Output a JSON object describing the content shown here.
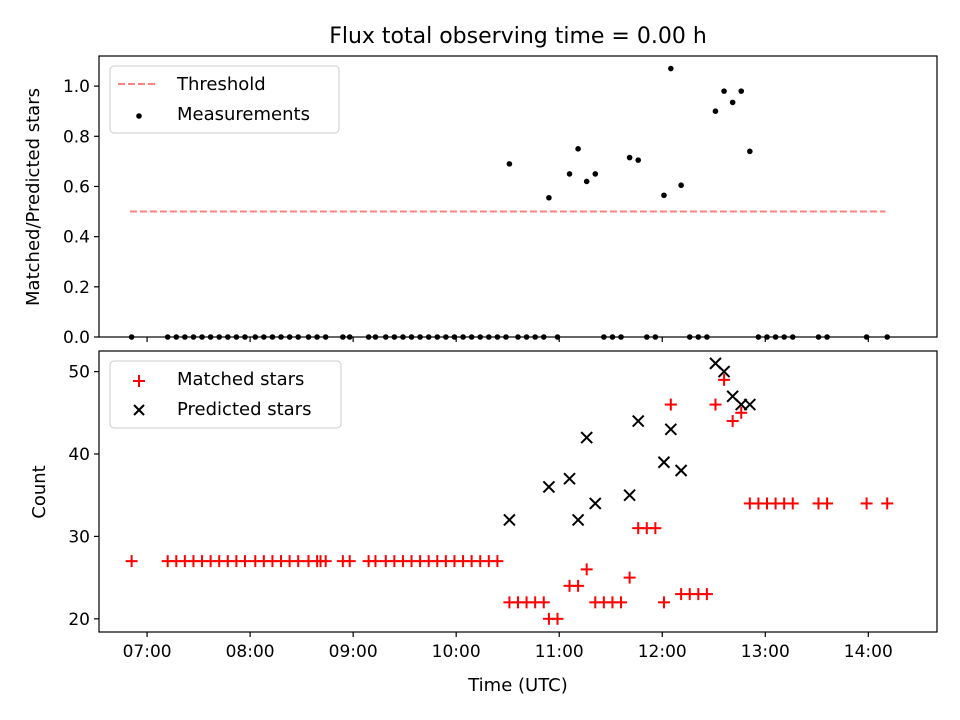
{
  "figure_title": "Flux total observing time = 0.00 h",
  "chart_data": [
    {
      "type": "scatter",
      "panel": "top",
      "ylabel": "Matched/Predicted stars",
      "xlabel": "",
      "ylim": [
        0,
        1.12
      ],
      "xlim": [
        "06:32",
        "14:40"
      ],
      "yticks": [
        0.0,
        0.2,
        0.4,
        0.6,
        0.8,
        1.0
      ],
      "ytick_labels": [
        "0.0",
        "0.2",
        "0.4",
        "0.6",
        "0.8",
        "1.0"
      ],
      "legend": {
        "placement": "upper left",
        "entries": [
          "Threshold",
          "Measurements"
        ]
      },
      "threshold": {
        "name": "Threshold",
        "y": 0.5,
        "x_start": "06:50",
        "x_end": "14:10",
        "color": "#ff8080",
        "style": "dashed"
      },
      "series": [
        {
          "name": "Measurements",
          "color": "#000000",
          "marker": "dot",
          "points": [
            [
              "06:51",
              0
            ],
            [
              "07:12",
              0
            ],
            [
              "07:17",
              0
            ],
            [
              "07:22",
              0
            ],
            [
              "07:27",
              0
            ],
            [
              "07:32",
              0
            ],
            [
              "07:37",
              0
            ],
            [
              "07:42",
              0
            ],
            [
              "07:47",
              0
            ],
            [
              "07:52",
              0
            ],
            [
              "07:57",
              0
            ],
            [
              "08:03",
              0
            ],
            [
              "08:08",
              0
            ],
            [
              "08:13",
              0
            ],
            [
              "08:18",
              0
            ],
            [
              "08:23",
              0
            ],
            [
              "08:28",
              0
            ],
            [
              "08:34",
              0
            ],
            [
              "08:39",
              0
            ],
            [
              "08:44",
              0
            ],
            [
              "08:54",
              0
            ],
            [
              "08:58",
              0
            ],
            [
              "09:09",
              0
            ],
            [
              "09:13",
              0
            ],
            [
              "09:19",
              0
            ],
            [
              "09:24",
              0
            ],
            [
              "09:29",
              0
            ],
            [
              "09:34",
              0
            ],
            [
              "09:39",
              0
            ],
            [
              "09:44",
              0
            ],
            [
              "09:49",
              0
            ],
            [
              "09:54",
              0
            ],
            [
              "09:59",
              0
            ],
            [
              "10:04",
              0
            ],
            [
              "10:09",
              0
            ],
            [
              "10:14",
              0
            ],
            [
              "10:19",
              0
            ],
            [
              "10:24",
              0
            ],
            [
              "10:29",
              0
            ],
            [
              "10:31",
              0.69
            ],
            [
              "10:36",
              0
            ],
            [
              "10:41",
              0
            ],
            [
              "10:46",
              0
            ],
            [
              "10:51",
              0
            ],
            [
              "10:54",
              0.555
            ],
            [
              "10:59",
              0
            ],
            [
              "11:06",
              0.65
            ],
            [
              "11:11",
              0.75
            ],
            [
              "11:16",
              0.62
            ],
            [
              "11:21",
              0.65
            ],
            [
              "11:26",
              0
            ],
            [
              "11:31",
              0
            ],
            [
              "11:36",
              0
            ],
            [
              "11:41",
              0.715
            ],
            [
              "11:46",
              0.705
            ],
            [
              "11:51",
              0
            ],
            [
              "11:56",
              0
            ],
            [
              "12:01",
              0.565
            ],
            [
              "12:05",
              1.07
            ],
            [
              "12:11",
              0.605
            ],
            [
              "12:16",
              0
            ],
            [
              "12:21",
              0
            ],
            [
              "12:26",
              0
            ],
            [
              "12:31",
              0.9
            ],
            [
              "12:36",
              0.98
            ],
            [
              "12:41",
              0.935
            ],
            [
              "12:46",
              0.98
            ],
            [
              "12:51",
              0.74
            ],
            [
              "12:56",
              0
            ],
            [
              "13:01",
              0
            ],
            [
              "13:06",
              0
            ],
            [
              "13:11",
              0
            ],
            [
              "13:16",
              0
            ],
            [
              "13:31",
              0
            ],
            [
              "13:36",
              0
            ],
            [
              "13:59",
              0
            ],
            [
              "14:11",
              0
            ]
          ]
        }
      ]
    },
    {
      "type": "scatter",
      "panel": "bottom",
      "ylabel": "Count",
      "xlabel": "Time (UTC)",
      "ylim": [
        18.4,
        52.5
      ],
      "xlim": [
        "06:32",
        "14:40"
      ],
      "yticks": [
        20,
        30,
        40,
        50
      ],
      "ytick_labels": [
        "20",
        "30",
        "40",
        "50"
      ],
      "xticks": [
        "07:00",
        "08:00",
        "09:00",
        "10:00",
        "11:00",
        "12:00",
        "13:00",
        "14:00"
      ],
      "xtick_labels": [
        "07:00",
        "08:00",
        "09:00",
        "10:00",
        "11:00",
        "12:00",
        "13:00",
        "14:00"
      ],
      "legend": {
        "placement": "upper left",
        "entries": [
          "Matched stars",
          "Predicted stars"
        ]
      },
      "series": [
        {
          "name": "Matched stars",
          "color": "#ff0000",
          "marker": "plus",
          "points": [
            [
              "06:51",
              27
            ],
            [
              "07:12",
              27
            ],
            [
              "07:17",
              27
            ],
            [
              "07:22",
              27
            ],
            [
              "07:27",
              27
            ],
            [
              "07:32",
              27
            ],
            [
              "07:37",
              27
            ],
            [
              "07:42",
              27
            ],
            [
              "07:47",
              27
            ],
            [
              "07:52",
              27
            ],
            [
              "07:57",
              27
            ],
            [
              "08:03",
              27
            ],
            [
              "08:08",
              27
            ],
            [
              "08:13",
              27
            ],
            [
              "08:18",
              27
            ],
            [
              "08:23",
              27
            ],
            [
              "08:28",
              27
            ],
            [
              "08:34",
              27
            ],
            [
              "08:39",
              27
            ],
            [
              "08:41",
              27
            ],
            [
              "08:44",
              27
            ],
            [
              "08:54",
              27
            ],
            [
              "08:58",
              27
            ],
            [
              "09:09",
              27
            ],
            [
              "09:13",
              27
            ],
            [
              "09:19",
              27
            ],
            [
              "09:24",
              27
            ],
            [
              "09:29",
              27
            ],
            [
              "09:34",
              27
            ],
            [
              "09:39",
              27
            ],
            [
              "09:44",
              27
            ],
            [
              "09:49",
              27
            ],
            [
              "09:54",
              27
            ],
            [
              "09:59",
              27
            ],
            [
              "10:04",
              27
            ],
            [
              "10:09",
              27
            ],
            [
              "10:14",
              27
            ],
            [
              "10:19",
              27
            ],
            [
              "10:24",
              27
            ],
            [
              "10:31",
              22
            ],
            [
              "10:36",
              22
            ],
            [
              "10:41",
              22
            ],
            [
              "10:46",
              22
            ],
            [
              "10:51",
              22
            ],
            [
              "10:54",
              20
            ],
            [
              "10:59",
              20
            ],
            [
              "11:06",
              24
            ],
            [
              "11:11",
              24
            ],
            [
              "11:16",
              26
            ],
            [
              "11:21",
              22
            ],
            [
              "11:26",
              22
            ],
            [
              "11:31",
              22
            ],
            [
              "11:36",
              22
            ],
            [
              "11:41",
              25
            ],
            [
              "11:46",
              31
            ],
            [
              "11:51",
              31
            ],
            [
              "11:56",
              31
            ],
            [
              "12:01",
              22
            ],
            [
              "12:05",
              46
            ],
            [
              "12:11",
              23
            ],
            [
              "12:16",
              23
            ],
            [
              "12:21",
              23
            ],
            [
              "12:26",
              23
            ],
            [
              "12:31",
              46
            ],
            [
              "12:36",
              49
            ],
            [
              "12:41",
              44
            ],
            [
              "12:46",
              45
            ],
            [
              "12:51",
              34
            ],
            [
              "12:56",
              34
            ],
            [
              "13:01",
              34
            ],
            [
              "13:06",
              34
            ],
            [
              "13:11",
              34
            ],
            [
              "13:16",
              34
            ],
            [
              "13:31",
              34
            ],
            [
              "13:36",
              34
            ],
            [
              "13:59",
              34
            ],
            [
              "14:11",
              34
            ]
          ]
        },
        {
          "name": "Predicted stars",
          "color": "#000000",
          "marker": "x",
          "points": [
            [
              "10:31",
              32
            ],
            [
              "10:54",
              36
            ],
            [
              "11:06",
              37
            ],
            [
              "11:11",
              32
            ],
            [
              "11:16",
              42
            ],
            [
              "11:21",
              34
            ],
            [
              "11:41",
              35
            ],
            [
              "11:46",
              44
            ],
            [
              "12:01",
              39
            ],
            [
              "12:05",
              43
            ],
            [
              "12:11",
              38
            ],
            [
              "12:31",
              51
            ],
            [
              "12:36",
              50
            ],
            [
              "12:41",
              47
            ],
            [
              "12:46",
              46
            ],
            [
              "12:51",
              46
            ]
          ]
        }
      ]
    }
  ]
}
